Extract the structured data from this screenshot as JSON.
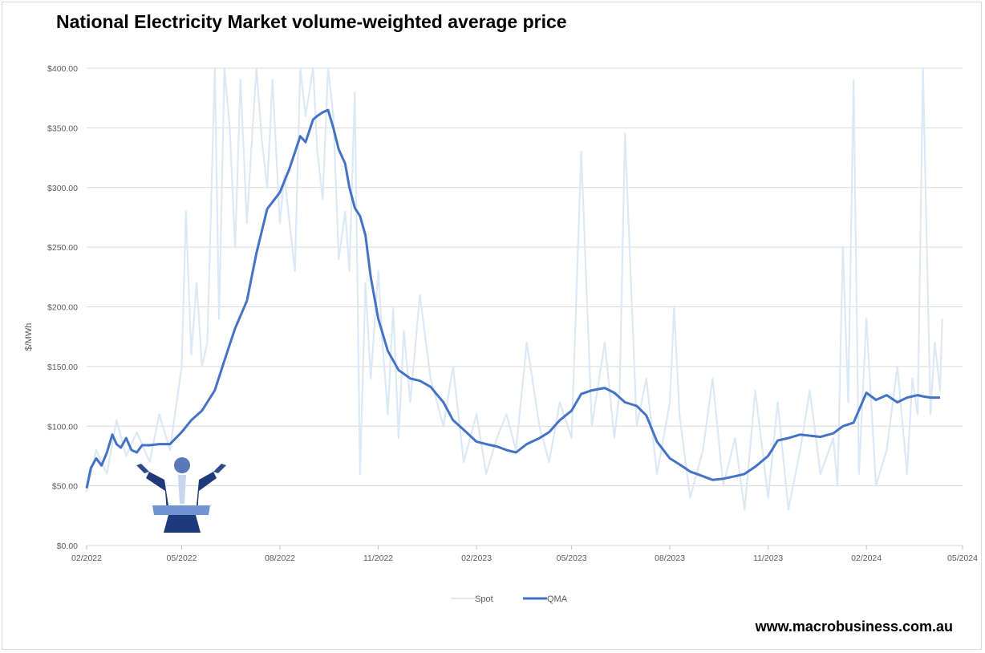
{
  "site": "www.macrobusiness.com.au",
  "chart_data": {
    "type": "line",
    "title": "National Electricity Market volume-weighted average price",
    "ylabel": "$/MWh",
    "xlabel": "",
    "ylim": [
      0,
      400
    ],
    "xlim": [
      "2022-02-01",
      "2024-05-01"
    ],
    "y_ticks": [
      "$0.00",
      "$50.00",
      "$100.00",
      "$150.00",
      "$200.00",
      "$250.00",
      "$300.00",
      "$350.00",
      "$400.00"
    ],
    "x_ticks": [
      "02/2022",
      "05/2022",
      "08/2022",
      "11/2022",
      "02/2023",
      "05/2023",
      "08/2023",
      "11/2023",
      "02/2024",
      "05/2024"
    ],
    "grid": true,
    "legend": "bottom",
    "colors": {
      "spot": "#dbe8f5",
      "qma": "#4472c4",
      "grid": "#d9d9d9"
    },
    "series": [
      {
        "name": "Spot",
        "x": [
          "2022-02-01",
          "2022-02-10",
          "2022-02-20",
          "2022-03-01",
          "2022-03-10",
          "2022-03-20",
          "2022-04-01",
          "2022-04-10",
          "2022-04-20",
          "2022-05-01",
          "2022-05-05",
          "2022-05-10",
          "2022-05-15",
          "2022-05-20",
          "2022-05-25",
          "2022-06-01",
          "2022-06-05",
          "2022-06-10",
          "2022-06-15",
          "2022-06-20",
          "2022-06-25",
          "2022-07-01",
          "2022-07-05",
          "2022-07-10",
          "2022-07-15",
          "2022-07-20",
          "2022-07-25",
          "2022-08-01",
          "2022-08-05",
          "2022-08-10",
          "2022-08-15",
          "2022-08-20",
          "2022-08-25",
          "2022-09-01",
          "2022-09-05",
          "2022-09-10",
          "2022-09-15",
          "2022-09-20",
          "2022-09-25",
          "2022-10-01",
          "2022-10-05",
          "2022-10-10",
          "2022-10-15",
          "2022-10-20",
          "2022-10-25",
          "2022-11-01",
          "2022-11-05",
          "2022-11-10",
          "2022-11-15",
          "2022-11-20",
          "2022-11-25",
          "2022-12-01",
          "2022-12-10",
          "2022-12-20",
          "2023-01-01",
          "2023-01-10",
          "2023-01-20",
          "2023-02-01",
          "2023-02-10",
          "2023-02-20",
          "2023-03-01",
          "2023-03-10",
          "2023-03-20",
          "2023-04-01",
          "2023-04-10",
          "2023-04-20",
          "2023-05-01",
          "2023-05-10",
          "2023-05-20",
          "2023-06-01",
          "2023-06-10",
          "2023-06-15",
          "2023-06-20",
          "2023-07-01",
          "2023-07-10",
          "2023-07-20",
          "2023-08-01",
          "2023-08-05",
          "2023-08-10",
          "2023-08-20",
          "2023-09-01",
          "2023-09-10",
          "2023-09-20",
          "2023-10-01",
          "2023-10-10",
          "2023-10-20",
          "2023-11-01",
          "2023-11-10",
          "2023-11-20",
          "2023-12-01",
          "2023-12-10",
          "2023-12-20",
          "2024-01-01",
          "2024-01-05",
          "2024-01-10",
          "2024-01-15",
          "2024-01-20",
          "2024-01-25",
          "2024-02-01",
          "2024-02-10",
          "2024-02-20",
          "2024-03-01",
          "2024-03-10",
          "2024-03-15",
          "2024-03-20",
          "2024-03-25",
          "2024-04-01",
          "2024-04-05",
          "2024-04-10",
          "2024-04-12"
        ],
        "values": [
          45,
          80,
          60,
          105,
          75,
          95,
          70,
          110,
          80,
          150,
          280,
          160,
          220,
          150,
          170,
          400,
          190,
          400,
          350,
          250,
          390,
          270,
          330,
          420,
          340,
          300,
          390,
          270,
          310,
          270,
          230,
          400,
          360,
          410,
          330,
          290,
          400,
          360,
          240,
          280,
          230,
          380,
          60,
          220,
          140,
          230,
          170,
          110,
          200,
          90,
          180,
          120,
          210,
          140,
          100,
          150,
          70,
          110,
          60,
          90,
          110,
          80,
          170,
          100,
          70,
          120,
          90,
          330,
          100,
          170,
          90,
          130,
          345,
          100,
          140,
          60,
          120,
          200,
          110,
          40,
          80,
          140,
          50,
          90,
          30,
          130,
          40,
          120,
          30,
          80,
          130,
          60,
          90,
          50,
          250,
          120,
          390,
          60,
          190,
          50,
          80,
          150,
          60,
          140,
          110,
          400,
          110,
          170,
          130,
          190
        ]
      },
      {
        "name": "QMA",
        "x": [
          "2022-02-01",
          "2022-02-05",
          "2022-02-10",
          "2022-02-15",
          "2022-02-20",
          "2022-02-25",
          "2022-03-01",
          "2022-03-05",
          "2022-03-10",
          "2022-03-15",
          "2022-03-20",
          "2022-03-25",
          "2022-04-01",
          "2022-04-10",
          "2022-04-20",
          "2022-05-01",
          "2022-05-10",
          "2022-05-20",
          "2022-06-01",
          "2022-06-10",
          "2022-06-20",
          "2022-07-01",
          "2022-07-10",
          "2022-07-20",
          "2022-08-01",
          "2022-08-10",
          "2022-08-20",
          "2022-08-25",
          "2022-09-01",
          "2022-09-05",
          "2022-09-10",
          "2022-09-15",
          "2022-09-20",
          "2022-09-25",
          "2022-10-01",
          "2022-10-05",
          "2022-10-10",
          "2022-10-15",
          "2022-10-20",
          "2022-10-25",
          "2022-11-01",
          "2022-11-10",
          "2022-11-20",
          "2022-12-01",
          "2022-12-10",
          "2022-12-20",
          "2023-01-01",
          "2023-01-10",
          "2023-01-20",
          "2023-02-01",
          "2023-02-10",
          "2023-02-20",
          "2023-03-01",
          "2023-03-10",
          "2023-03-20",
          "2023-04-01",
          "2023-04-10",
          "2023-04-20",
          "2023-05-01",
          "2023-05-10",
          "2023-05-20",
          "2023-06-01",
          "2023-06-10",
          "2023-06-20",
          "2023-07-01",
          "2023-07-10",
          "2023-07-20",
          "2023-08-01",
          "2023-08-10",
          "2023-08-20",
          "2023-09-01",
          "2023-09-10",
          "2023-09-20",
          "2023-10-01",
          "2023-10-10",
          "2023-10-20",
          "2023-11-01",
          "2023-11-10",
          "2023-11-20",
          "2023-12-01",
          "2023-12-10",
          "2023-12-20",
          "2024-01-01",
          "2024-01-10",
          "2024-01-20",
          "2024-02-01",
          "2024-02-10",
          "2024-02-20",
          "2024-03-01",
          "2024-03-10",
          "2024-03-15",
          "2024-03-20",
          "2024-03-25",
          "2024-04-01",
          "2024-04-05",
          "2024-04-10"
        ],
        "values": [
          48,
          65,
          73,
          67,
          78,
          93,
          85,
          82,
          90,
          80,
          78,
          84,
          84,
          85,
          85,
          95,
          105,
          113,
          130,
          155,
          182,
          205,
          245,
          282,
          296,
          316,
          343,
          338,
          357,
          360,
          363,
          365,
          350,
          332,
          320,
          300,
          283,
          276,
          260,
          225,
          190,
          163,
          147,
          140,
          138,
          133,
          120,
          105,
          97,
          87,
          85,
          83,
          80,
          78,
          85,
          90,
          95,
          105,
          113,
          127,
          130,
          132,
          128,
          120,
          117,
          109,
          87,
          73,
          68,
          62,
          58,
          55,
          56,
          58,
          60,
          66,
          75,
          88,
          90,
          93,
          92,
          91,
          94,
          100,
          103,
          128,
          122,
          126,
          120,
          124,
          125,
          126,
          125,
          124,
          124,
          124
        ]
      }
    ]
  }
}
